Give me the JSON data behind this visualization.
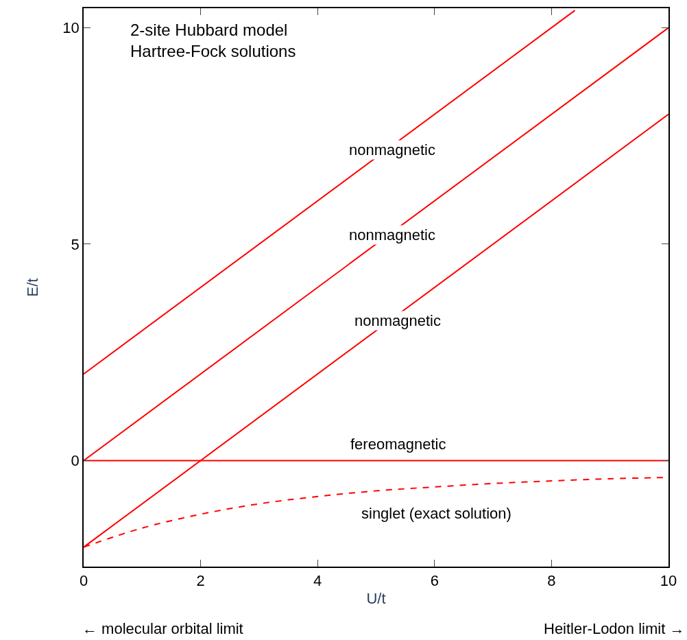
{
  "chart_data": {
    "type": "line",
    "title": "2-site Hubbard model\nHartree-Fock solutions",
    "xlabel": "U/t",
    "ylabel": "E/t",
    "xlim": [
      0,
      10
    ],
    "ylim": [
      -2.45,
      10.45
    ],
    "xticks": [
      0,
      2,
      4,
      6,
      8,
      10
    ],
    "yticks": [
      0,
      5,
      10
    ],
    "marker": "none",
    "series": [
      {
        "color": "#ff0000",
        "x": [
          0,
          8.4
        ],
        "values": [
          2,
          10.4
        ],
        "line_style": "solid"
      },
      {
        "color": "#ff0000",
        "x": [
          0,
          10
        ],
        "values": [
          0,
          10
        ],
        "line_style": "solid"
      },
      {
        "color": "#ff0000",
        "x": [
          0,
          10
        ],
        "values": [
          -2,
          8
        ],
        "line_style": "solid"
      },
      {
        "color": "#ff0000",
        "x": [
          0,
          10
        ],
        "values": [
          0,
          0
        ],
        "line_style": "solid"
      },
      {
        "color": "#ff0000",
        "x": [
          0,
          1,
          2,
          3,
          4,
          5,
          6,
          7,
          8,
          9,
          10
        ],
        "values": [
          -2,
          -1.56,
          -1.24,
          -1.0,
          -0.83,
          -0.7,
          -0.61,
          -0.53,
          -0.47,
          -0.42,
          -0.39
        ],
        "line_style": "dashed"
      }
    ],
    "annotations": [
      "nonmagnetic",
      "nonmagnetic",
      "nonmagnetic",
      "fereomagnetic",
      "singlet (exact solution)",
      "← molecular orbital limit",
      "Heitler-Lodon limit →"
    ]
  }
}
